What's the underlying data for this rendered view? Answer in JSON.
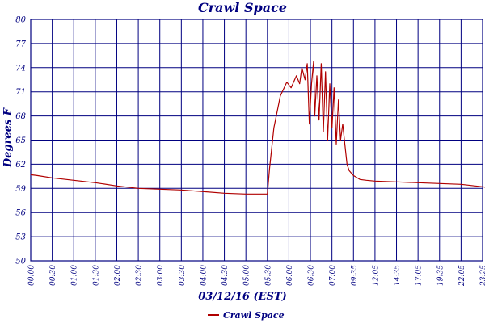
{
  "chart_data": {
    "type": "line",
    "title": "Crawl Space",
    "xlabel": "03/12/16 (EST)",
    "ylabel": "Degrees F",
    "ylim": [
      50,
      80
    ],
    "yticks": [
      50,
      53,
      56,
      59,
      62,
      65,
      68,
      71,
      74,
      77,
      80
    ],
    "xticks": [
      "00:00",
      "00:30",
      "01:00",
      "01:30",
      "02:00",
      "02:30",
      "03:00",
      "03:30",
      "04:00",
      "04:30",
      "05:00",
      "05:30",
      "06:00",
      "06:30",
      "07:00",
      "09:35",
      "12:05",
      "14:35",
      "17:05",
      "19:35",
      "22:05",
      "23:25"
    ],
    "grid": true,
    "legend_position": "bottom",
    "series": [
      {
        "name": "Crawl Space",
        "color": "#b00000",
        "x": [
          0,
          0.3,
          1,
          2,
          3,
          4,
          5,
          6,
          7,
          8,
          9,
          10,
          11,
          11.1,
          11.3,
          11.6,
          11.9,
          12.1,
          12.35,
          12.5,
          12.6,
          12.75,
          12.85,
          12.95,
          13.05,
          13.15,
          13.2,
          13.3,
          13.4,
          13.5,
          13.6,
          13.7,
          13.8,
          13.9,
          14.0,
          14.1,
          14.2,
          14.3,
          14.4,
          14.5,
          14.6,
          14.7,
          14.8,
          14.9,
          15.0,
          15.3,
          15.6,
          16,
          17,
          18,
          19,
          20,
          21,
          21.5
        ],
        "y": [
          60.7,
          60.6,
          60.3,
          60.0,
          59.7,
          59.3,
          59.0,
          58.9,
          58.8,
          58.6,
          58.4,
          58.3,
          58.3,
          61.5,
          66.5,
          70.5,
          72.2,
          71.5,
          73.0,
          72.0,
          74.0,
          72.5,
          74.5,
          67.0,
          72.0,
          74.8,
          68.0,
          73.0,
          67.5,
          74.5,
          66.0,
          73.5,
          65.0,
          72.0,
          66.5,
          71.5,
          64.5,
          70.0,
          65.0,
          67.0,
          64.5,
          62.0,
          61.2,
          60.9,
          60.6,
          60.1,
          60.0,
          59.9,
          59.8,
          59.7,
          59.6,
          59.5,
          59.2,
          59.0
        ]
      }
    ]
  }
}
